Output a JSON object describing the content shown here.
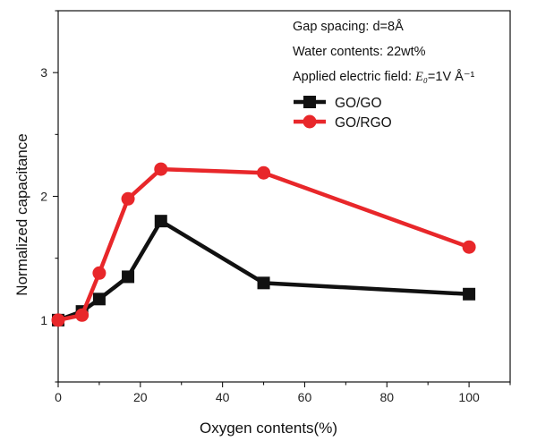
{
  "chart_data": {
    "type": "line",
    "title": "",
    "xlabel": "Oxygen contents(%)",
    "ylabel": "Normalized capacitance",
    "xlim": [
      0,
      110
    ],
    "ylim": [
      0.5,
      3.5
    ],
    "xticks": [
      0,
      20,
      40,
      60,
      80,
      100
    ],
    "yticks": [
      1,
      2,
      3
    ],
    "grid": false,
    "legend_position": "top-right",
    "annotations": [
      {
        "text": "Gap spacing: d=8Å"
      },
      {
        "text": "Water contents: 22wt%"
      },
      {
        "prefix": "Applied electric field: ",
        "symbol": "E₀",
        "suffix": "=1V Å⁻¹"
      }
    ],
    "series": [
      {
        "name": "GO/GO",
        "color": "#111111",
        "marker": "square",
        "x": [
          0,
          5.8,
          10,
          17,
          25,
          50,
          100
        ],
        "y": [
          1.0,
          1.07,
          1.17,
          1.35,
          1.8,
          1.3,
          1.21
        ]
      },
      {
        "name": "GO/RGO",
        "color": "#e8272a",
        "marker": "circle",
        "x": [
          0,
          5.8,
          10,
          17,
          25,
          50,
          100
        ],
        "y": [
          1.0,
          1.04,
          1.38,
          1.98,
          2.22,
          2.19,
          1.59
        ]
      }
    ]
  }
}
